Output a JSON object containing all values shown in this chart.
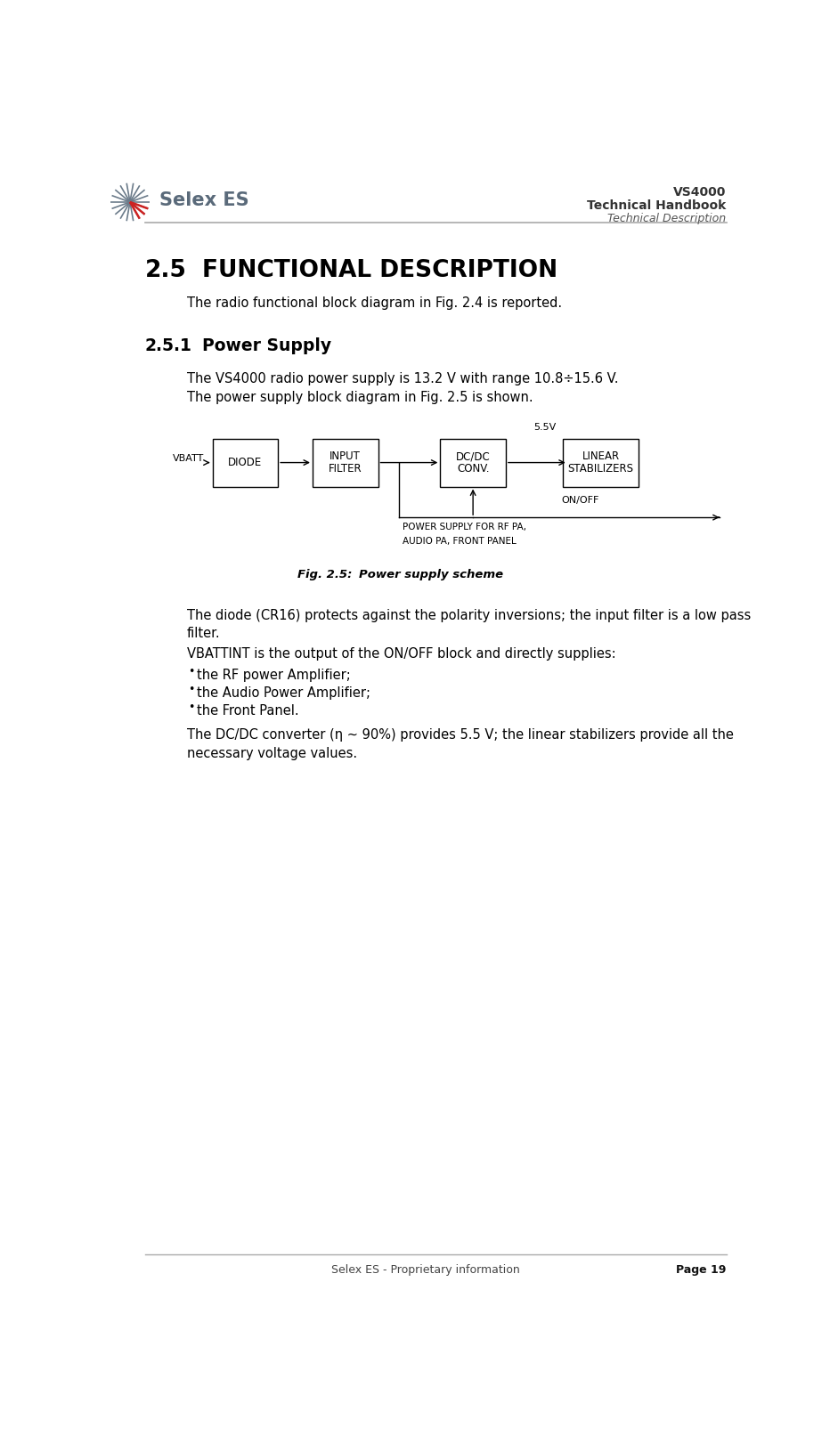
{
  "page_width": 9.32,
  "page_height": 16.22,
  "bg_color": "#ffffff",
  "header_line_color": "#aaaaaa",
  "footer_line_color": "#aaaaaa",
  "header_title": "VS4000",
  "header_subtitle": "Technical Handbook",
  "header_italic": "Technical Description",
  "footer_left": "Selex ES - Proprietary information",
  "footer_right": "Page 19",
  "section_25_num": "2.5",
  "section_25_title": "FUNCTIONAL DESCRIPTION",
  "section_25_body": "The radio functional block diagram in Fig. 2.4 is reported.",
  "section_251_num": "2.5.1",
  "section_251_title": "Power Supply",
  "section_251_line1": "The VS4000 radio power supply is 13.2 V with range 10.8÷15.6 V.",
  "section_251_line2": "The power supply block diagram in Fig. 2.5 is shown.",
  "fig_caption_label": "Fig. 2.5:",
  "fig_caption_text": "Power supply scheme",
  "para1_line1": "The diode (CR16) protects against the polarity inversions; the input filter is a low pass",
  "para1_line2": "filter.",
  "para2": "VBATTINT is the output of the ON/OFF block and directly supplies:",
  "bullet1": "the RF power Amplifier;",
  "bullet2": "the Audio Power Amplifier;",
  "bullet3": "the Front Panel.",
  "para3_line1": "The DC/DC converter (η ~ 90%) provides 5.5 V; the linear stabilizers provide all the",
  "para3_line2": "necessary voltage values.",
  "text_color": "#000000",
  "body_font_size": 10.5,
  "section_font_size": 19,
  "subsection_font_size": 13.5
}
